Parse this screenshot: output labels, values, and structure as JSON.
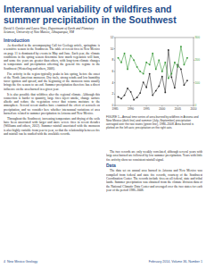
{
  "header": {
    "title": "Interannual variability of wildfires and summer precipitation in the Southwest",
    "authors": "David S. Gutzler and Laura Nims, Department of Earth and Planetary Sciences, University of New Mexico, Albuquerque, NM"
  },
  "left_column": [
    {
      "heading": "Introduction",
      "paragraphs": [
        "As described in the accompanying Call for Geology article, springtime is a sensitive season in the Southwest. The table of recent fires in New Mexico on page 11 is dominated by events in May and June. Each year, the climate conditions in the spring season determine how much vegetation will burn, and some fire years are greater than others, with long-term climate changes in temperature and precipitation affecting the general fire regime in the Southwest (Westerling and others, 2006).",
        "Fire activity in the region typically peaks in late spring, before the onset of the North American monsoon. Dry fuels, strong winds and low humidity favor ignition and spread, and the beginning of the monsoon rains usually brings the fire season to an end. Summer precipitation therefore has a direct influence on the area burned in a given year.",
        "It is also possible that wildfires alter the regional climate. Although this connection is harder to quantify, large fires inject smoke, change surface albedo and reduce the vegetation cover that returns moisture to the atmosphere. Several recent studies have examined the effect of aerosols on precipitation, and we consider here whether interannual variations of area burned are related to summer precipitation in Arizona and New Mexico.",
        "Throughout the Southwest, increasing temperature and drying of the soils have been associated with larger and more severe fires in recent decades (Williams and others, 2012). Summer rainfall associated with the monsoon is also highly variable from year to year, so that the relationship between fire and rainfall can be studied with the available records."
      ]
    }
  ],
  "right_column": {
    "caption": "FIGURE 1—Annual time series of area burned by wildfires in Arizona and New Mexico (dark line) and summer (July–September) precipitation averaged over the two states (green line), 1986–2008. Area burned is plotted on the left axis; precipitation on the right axis.",
    "paragraphs": [
      "The two records are only weakly correlated, although several years with large area burned are followed by low summer precipitation. Years with little fire activity show no consistent rainfall signal."
    ],
    "sections": [
      {
        "heading": "Data",
        "paragraphs": [
          "The data set on annual area burned in Arizona and New Mexico was compiled from federal and state fire records, courtesy of the Southwest Coordination Center. The records include fires on all federal, state and tribal lands. Summer precipitation was obtained from the climate division data of the National Climatic Data Center and averaged over the two states for each year of the period 1986–2008."
        ]
      }
    ]
  },
  "chart_data": {
    "type": "line",
    "x": [
      1986,
      1987,
      1988,
      1989,
      1990,
      1991,
      1992,
      1993,
      1994,
      1995,
      1996,
      1997,
      1998,
      1999,
      2000,
      2001,
      2002,
      2003,
      2004,
      2005,
      2006,
      2007,
      2008
    ],
    "series": [
      {
        "color": "#2b2b2b",
        "marker": "circle",
        "values": [
          1.5,
          1.2,
          1.8,
          3.0,
          2.4,
          1.0,
          1.4,
          2.2,
          4.1,
          3.2,
          5.6,
          1.8,
          2.6,
          3.4,
          5.1,
          2.3,
          9.8,
          5.0,
          3.1,
          7.2,
          6.4,
          3.6,
          4.4
        ]
      },
      {
        "color": "#3a9a3a",
        "marker": "square",
        "axis": "y2",
        "values": [
          210,
          190,
          230,
          160,
          220,
          200,
          170,
          150,
          140,
          190,
          180,
          230,
          160,
          200,
          150,
          190,
          120,
          140,
          190,
          170,
          260,
          180,
          210
        ]
      }
    ],
    "xlim": [
      1985,
      2010
    ],
    "xticks": [
      1985,
      1990,
      1995,
      2000,
      2005,
      2010
    ],
    "ylim": [
      0,
      12
    ],
    "yticks": [
      0,
      2,
      4,
      6,
      8,
      10,
      12
    ],
    "y2lim": [
      0,
      300
    ],
    "y2ticks": [
      0,
      100,
      200,
      300
    ],
    "grid": false
  },
  "footer": {
    "page": "4",
    "journal": "New Mexico Geology",
    "issue": "February 2014, Volume 36, Number 1"
  }
}
